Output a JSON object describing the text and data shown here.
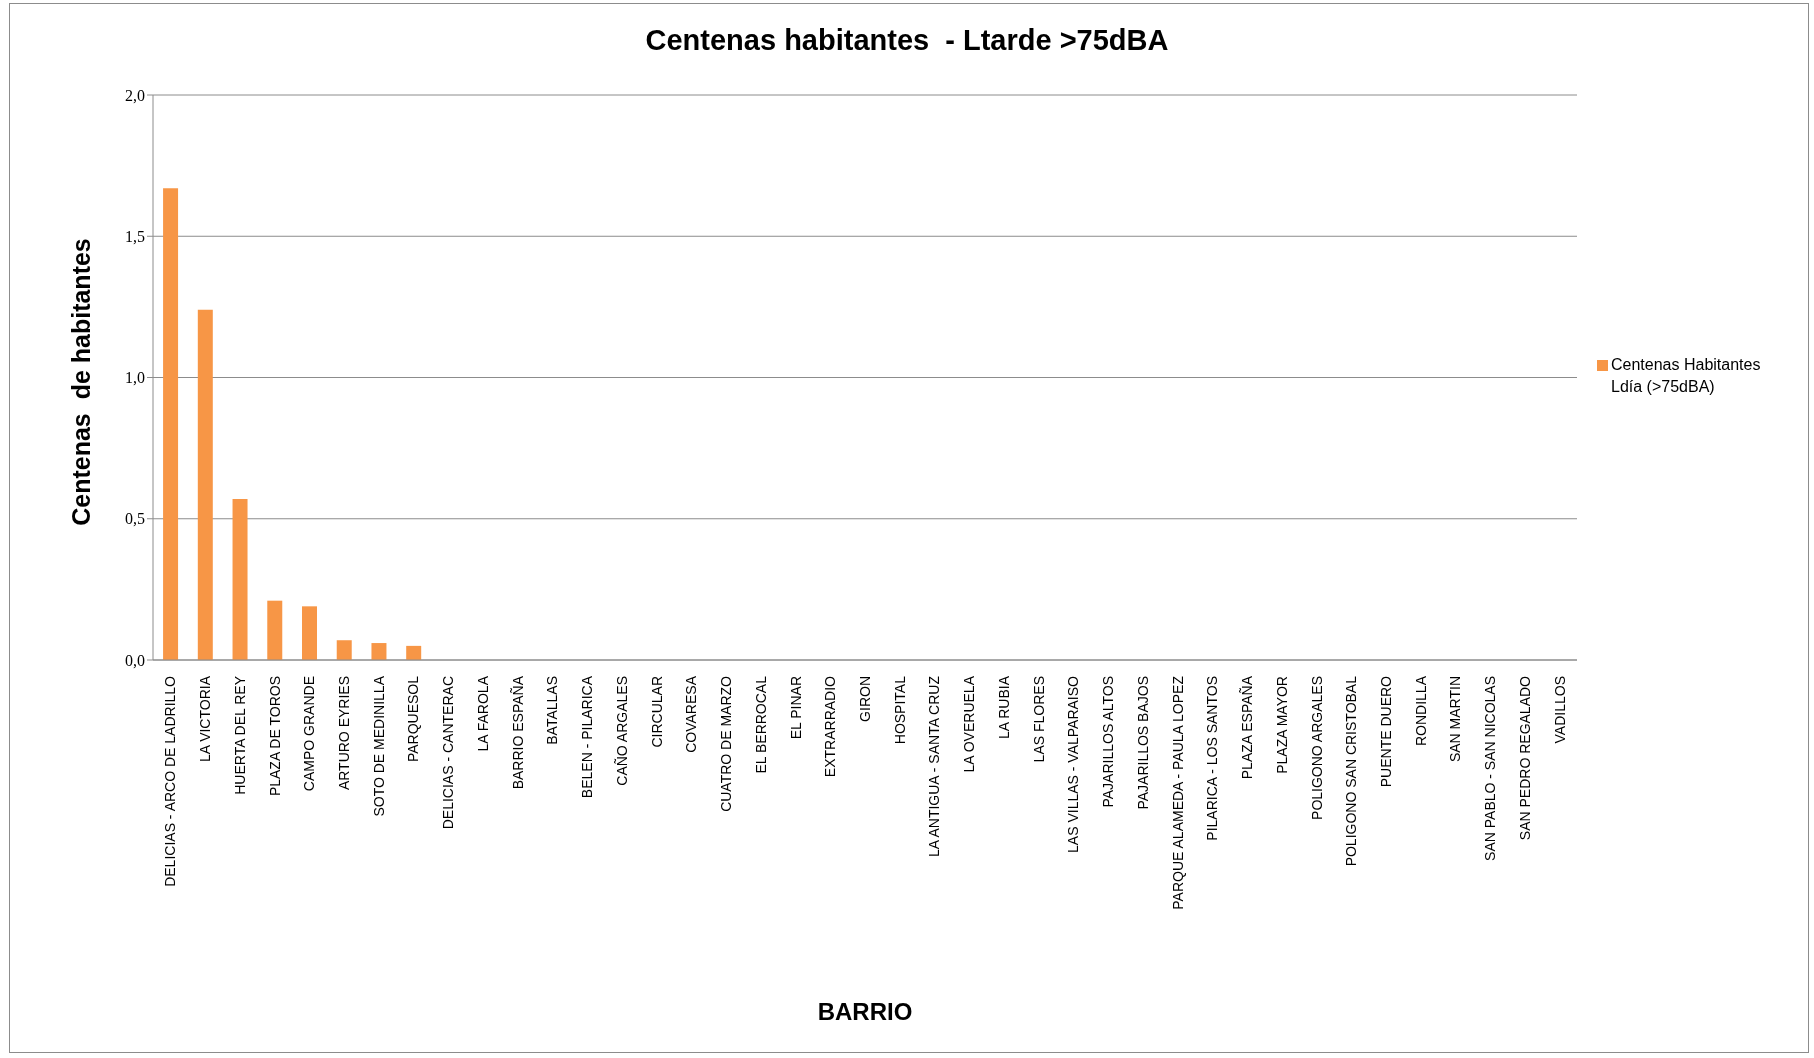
{
  "chart_data": {
    "type": "bar",
    "title": "Centenas habitantes  - Ltarde >75dBA",
    "xlabel": "BARRIO",
    "ylabel": "Centenas  de habitantes",
    "categories": [
      "DELICIAS - ARCO DE LADRILLO",
      "LA VICTORIA",
      "HUERTA DEL REY",
      "PLAZA DE TOROS",
      "CAMPO GRANDE",
      "ARTURO EYRIES",
      "SOTO DE MEDINILLA",
      "PARQUESOL",
      "DELICIAS - CANTERAC",
      "LA FAROLA",
      "BARRIO ESPAÑA",
      "BATALLAS",
      "BELEN - PILARICA",
      "CAÑO ARGALES",
      "CIRCULAR",
      "COVARESA",
      "CUATRO DE MARZO",
      "EL BERROCAL",
      "EL PINAR",
      "EXTRARRADIO",
      "GIRON",
      "HOSPITAL",
      "LA ANTIGUA - SANTA CRUZ",
      "LA OVERUELA",
      "LA RUBIA",
      "LAS FLORES",
      "LAS VILLAS - VALPARAISO",
      "PAJARILLOS ALTOS",
      "PAJARILLOS BAJOS",
      "PARQUE ALAMEDA - PAULA LOPEZ",
      "PILARICA - LOS SANTOS",
      "PLAZA ESPAÑA",
      "PLAZA MAYOR",
      "POLIGONO ARGALES",
      "POLIGONO SAN CRISTOBAL",
      "PUENTE DUERO",
      "RONDILLA",
      "SAN MARTIN",
      "SAN PABLO - SAN NICOLAS",
      "SAN PEDRO REGALADO",
      "VADILLOS"
    ],
    "series": [
      {
        "name": "Centenas Habitantes Ldía (>75dBA)",
        "color": "#f79646",
        "values": [
          1.67,
          1.24,
          0.57,
          0.21,
          0.19,
          0.07,
          0.06,
          0.05,
          0,
          0,
          0,
          0,
          0,
          0,
          0,
          0,
          0,
          0,
          0,
          0,
          0,
          0,
          0,
          0,
          0,
          0,
          0,
          0,
          0,
          0,
          0,
          0,
          0,
          0,
          0,
          0,
          0,
          0,
          0,
          0,
          0
        ]
      }
    ],
    "ylim": [
      0,
      2
    ],
    "yticks": [
      {
        "value": 0,
        "label": "0,0"
      },
      {
        "value": 0.5,
        "label": "0,5"
      },
      {
        "value": 1,
        "label": "1,0"
      },
      {
        "value": 1.5,
        "label": "1,5"
      },
      {
        "value": 2,
        "label": "2,0"
      }
    ],
    "grid": "y",
    "legend": "right"
  }
}
